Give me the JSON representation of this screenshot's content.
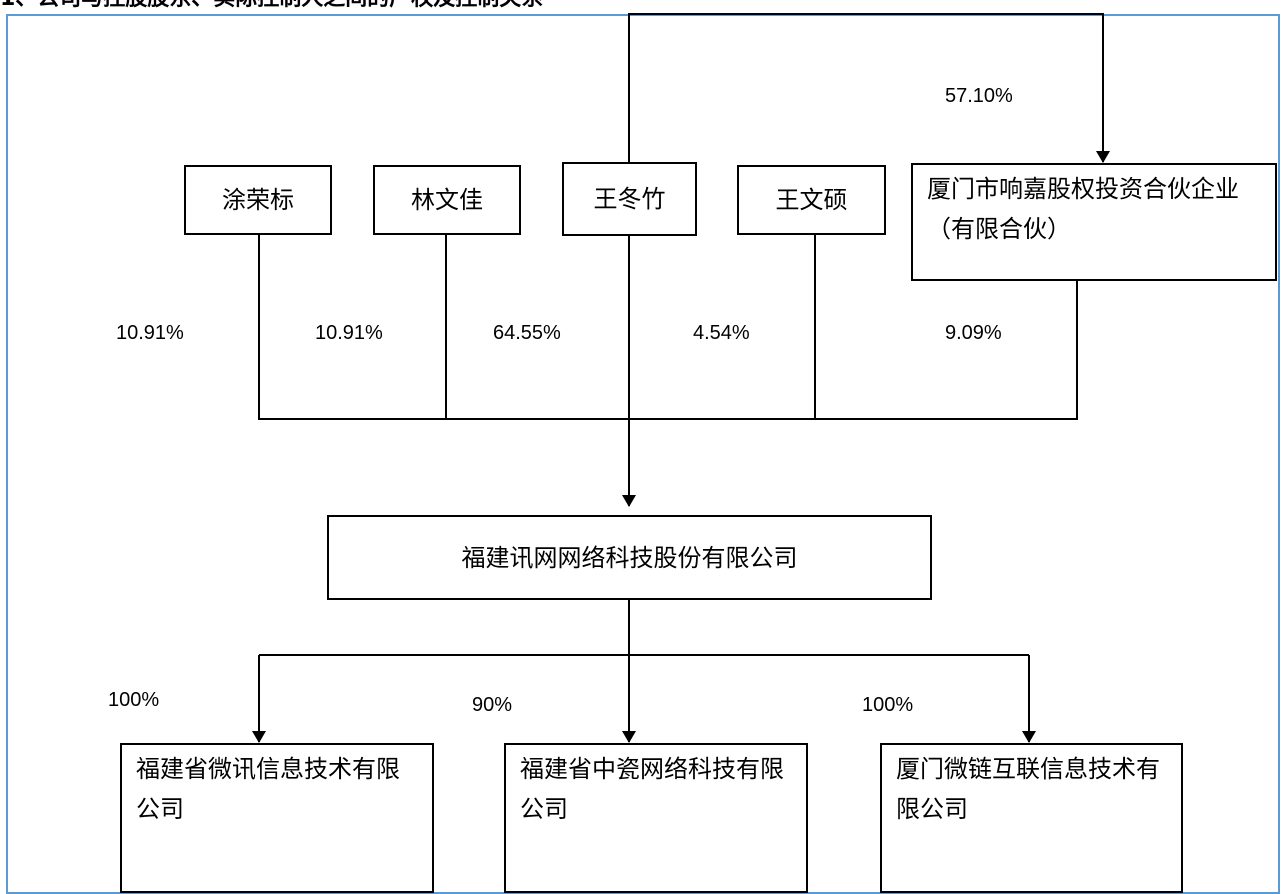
{
  "heading": "1、公司与控股股东、实际控制人之间的产权及控制关系",
  "shareholders": [
    {
      "name": "涂荣标",
      "pct": "10.91%"
    },
    {
      "name": "林文佳",
      "pct": "10.91%"
    },
    {
      "name": "王冬竹",
      "pct": "64.55%"
    },
    {
      "name": "王文硕",
      "pct": "4.54%"
    },
    {
      "name": "厦门市响嘉股权投资合伙企业（有限合伙）",
      "pct": "9.09%"
    }
  ],
  "partnership_stake": "57.10%",
  "company": "福建讯网网络科技股份有限公司",
  "subsidiaries": [
    {
      "name": "福建省微讯信息技术有限公司",
      "pct": "100%"
    },
    {
      "name": "福建省中瓷网络科技有限公司",
      "pct": "90%"
    },
    {
      "name": "厦门微链互联信息技术有限公司",
      "pct": "100%"
    }
  ],
  "colors": {
    "frame": "#5b9bd5",
    "line": "#000000"
  }
}
